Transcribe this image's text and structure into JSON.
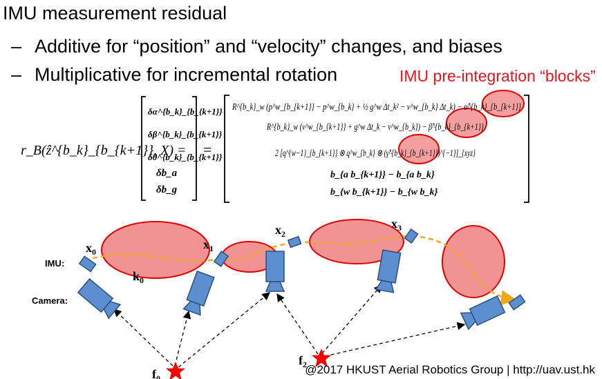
{
  "title": "IMU measurement residual",
  "bullets": [
    {
      "dash": "–",
      "text": "Additive for “position” and “velocity” changes, and biases"
    },
    {
      "dash": "–",
      "text": "Multiplicative for  incremental rotation"
    }
  ],
  "annotation": "IMU pre-integration “blocks”",
  "equation": {
    "lhs": "r_B(ẑ^{b_k}_{b_{k+1}}, X) =",
    "vector_entries": [
      "δα^{b_k}_{b_{k+1}}",
      "δβ^{b_k}_{b_{k+1}}",
      "δθ^{b_k}_{b_{k+1}}",
      "δb_a",
      "δb_g"
    ],
    "equals": "=",
    "rhs_rows": [
      "R^{b_k}_w (p^w_{b_{k+1}} − p^w_{b_k} + ½ g^w Δt_k² − v^w_{b_k} Δt_k) − α̂^{b_k}_{b_{k+1}}",
      "R^{b_k}_w (v^w_{b_{k+1}} + g^w Δt_k − v^w_{b_k}) − β̂^{b_k}_{b_{k+1}}",
      "2 [q^{w−1}_{b_{k+1}} ⊗ q^w_{b_k} ⊗ (γ̂^{b_k}_{b_{k+1}})^{−1}]_{xyz}",
      "b_{a b_{k+1}} − b_{a b_k}",
      "b_{w b_{k+1}} − b_{w b_k}"
    ]
  },
  "diagram": {
    "row_labels": {
      "imu": "IMU:",
      "camera": "Camera:"
    },
    "states": [
      "x",
      "x",
      "x",
      "x"
    ],
    "state_indices": [
      "0",
      "1",
      "2",
      "3"
    ],
    "keyframe": {
      "base": "k",
      "index": "0"
    },
    "features": [
      {
        "base": "f",
        "index": "0"
      },
      {
        "base": "f",
        "index": "2"
      }
    ]
  },
  "colors": {
    "ellipse_fill": "#f08080",
    "ellipse_stroke": "#e00000",
    "device_fill": "#5b8fd0",
    "device_stroke": "#2c4f80",
    "trajectory": "#f0a81e",
    "star": "#ff0000",
    "annotation": "#e8141c"
  },
  "footer": "@2017 HKUST Aerial Robotics Group | http://uav.ust.hk"
}
